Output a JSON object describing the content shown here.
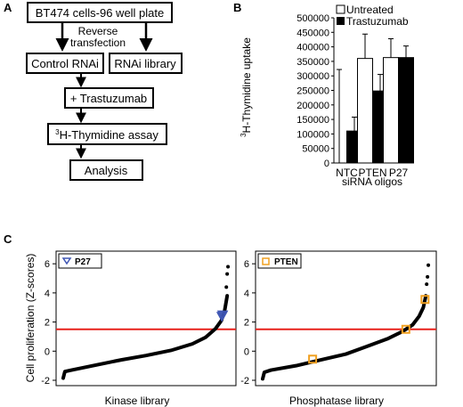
{
  "panel_a": {
    "label": "A",
    "box_cells": "BT474 cells-96 well plate",
    "reverse_label_1": "Reverse",
    "reverse_label_2": "transfection",
    "box_control": "Control RNAi",
    "box_library": "RNAi library",
    "box_trastuzumab": "+ Trastuzumab",
    "box_assay_sup": "3",
    "box_assay_text": "H-Thymidine assay",
    "box_analysis": "Analysis"
  },
  "panel_b": {
    "label": "B",
    "ylabel_sup": "3",
    "ylabel_text": "H-Thymidine uptake",
    "xlabel": "siRNA oligos",
    "legend_untreated": "Untreated",
    "legend_trastuzumab": "Trastuzumab"
  },
  "panel_c": {
    "label": "C",
    "ylabel": "Cell proliferation (Z-scores)",
    "left_xlabel": "Kinase library",
    "right_xlabel": "Phosphatase library",
    "left_legend": "P27",
    "right_legend": "PTEN",
    "colors": {
      "threshold": "#e8211b",
      "p27": "#3f56b4",
      "pten": "#f0a020"
    }
  },
  "chart_data": [
    {
      "type": "bar",
      "categories": [
        "NTC",
        "PTEN",
        "P27"
      ],
      "series": [
        {
          "name": "Untreated",
          "values": [
            0,
            360000,
            363000
          ],
          "errors": [
            322000,
            84000,
            65000
          ],
          "color": "#ffffff"
        },
        {
          "name": "Trastuzumab",
          "values": [
            110000,
            248000,
            363000
          ],
          "errors": [
            48000,
            57000,
            40000
          ],
          "color": "#000000"
        }
      ],
      "xlabel": "siRNA oligos",
      "ylabel": "3H-Thymidine uptake",
      "ylim": [
        0,
        500000
      ],
      "yticks": [
        0,
        50000,
        100000,
        150000,
        200000,
        250000,
        300000,
        350000,
        400000,
        450000,
        500000
      ],
      "ytick_labels": [
        "0",
        "50000",
        "100000",
        "150000",
        "200000",
        "250000",
        "300000",
        "350000",
        "400000",
        "450000",
        "500000"
      ],
      "legend": "top-right"
    },
    {
      "type": "scatter",
      "xlabel": "Kinase library",
      "ylabel": "Cell proliferation (Z-scores)",
      "ylim": [
        -2,
        6.5
      ],
      "yticks": [
        -2,
        0,
        2,
        4,
        6
      ],
      "ytick_labels": [
        "-2",
        "0",
        "2",
        "4",
        "6"
      ],
      "threshold": 1.5,
      "curve": [
        [
          0,
          -1.85
        ],
        [
          0.01,
          -1.4
        ],
        [
          0.05,
          -1.3
        ],
        [
          0.2,
          -0.95
        ],
        [
          0.35,
          -0.6
        ],
        [
          0.5,
          -0.3
        ],
        [
          0.65,
          0.05
        ],
        [
          0.78,
          0.5
        ],
        [
          0.86,
          0.95
        ],
        [
          0.92,
          1.55
        ],
        [
          0.955,
          2.1
        ],
        [
          0.975,
          2.8
        ],
        [
          0.99,
          3.8
        ]
      ],
      "outliers": [
        [
          0.985,
          4.4
        ],
        [
          0.99,
          5.3
        ],
        [
          0.995,
          5.8
        ]
      ],
      "highlight": {
        "name": "P27",
        "points": [
          [
            0.958,
            2.4
          ],
          [
            0.963,
            2.5
          ]
        ]
      },
      "legend": "top-left"
    },
    {
      "type": "scatter",
      "xlabel": "Phosphatase library",
      "ylabel": "",
      "ylim": [
        -2,
        6.5
      ],
      "yticks": [
        -2,
        0,
        2,
        4,
        6
      ],
      "ytick_labels": [
        "-2",
        "0",
        "2",
        "4",
        "6"
      ],
      "threshold": 1.5,
      "curve": [
        [
          0,
          -1.9
        ],
        [
          0.01,
          -1.45
        ],
        [
          0.05,
          -1.3
        ],
        [
          0.2,
          -1.0
        ],
        [
          0.35,
          -0.6
        ],
        [
          0.5,
          -0.2
        ],
        [
          0.62,
          0.3
        ],
        [
          0.75,
          0.85
        ],
        [
          0.84,
          1.35
        ],
        [
          0.9,
          1.8
        ],
        [
          0.94,
          2.4
        ],
        [
          0.965,
          3.0
        ],
        [
          0.98,
          3.8
        ]
      ],
      "outliers": [
        [
          0.985,
          4.6
        ],
        [
          0.99,
          5.1
        ],
        [
          0.995,
          5.9
        ]
      ],
      "highlight": {
        "name": "PTEN",
        "points": [
          [
            0.3,
            -0.55
          ],
          [
            0.86,
            1.5
          ],
          [
            0.975,
            3.55
          ]
        ]
      },
      "legend": "top-left"
    }
  ]
}
